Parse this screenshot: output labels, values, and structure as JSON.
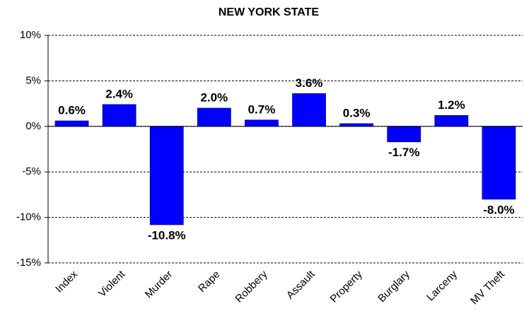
{
  "chart_data": {
    "type": "bar",
    "title": "NEW YORK STATE",
    "categories": [
      "Index",
      "Violent",
      "Murder",
      "Rape",
      "Robbery",
      "Assault",
      "Property",
      "Burglary",
      "Larceny",
      "MV Theft"
    ],
    "values": [
      0.6,
      2.4,
      -10.8,
      2.0,
      0.7,
      3.6,
      0.3,
      -1.7,
      1.2,
      -8.0
    ],
    "value_labels": [
      "0.6%",
      "2.4%",
      "-10.8%",
      "2.0%",
      "0.7%",
      "3.6%",
      "0.3%",
      "-1.7%",
      "1.2%",
      "-8.0%"
    ],
    "color": "#0000ff",
    "ylim": [
      -15,
      10
    ],
    "yticks": [
      {
        "value": -15,
        "label": "-15%"
      },
      {
        "value": -10,
        "label": "-10%"
      },
      {
        "value": -5,
        "label": "-5%"
      },
      {
        "value": 0,
        "label": "0%"
      },
      {
        "value": 5,
        "label": "5%"
      },
      {
        "value": 10,
        "label": "10%"
      }
    ],
    "grid": true
  }
}
